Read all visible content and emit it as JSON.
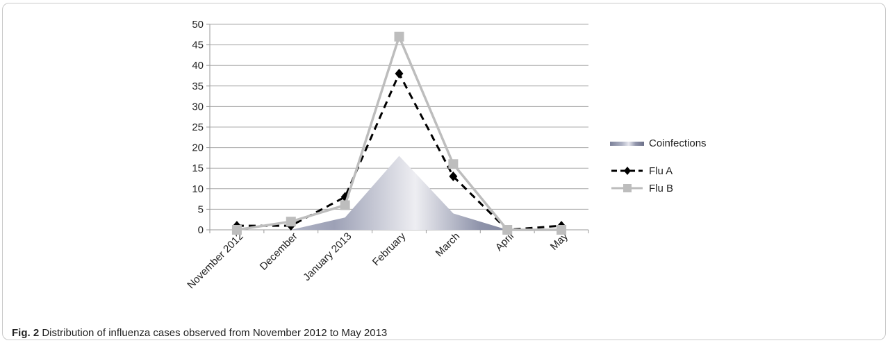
{
  "caption": {
    "label": "Fig. 2",
    "text": "Distribution of influenza cases observed from November 2012 to May 2013"
  },
  "chart_data": {
    "type": "line",
    "categories": [
      "November 2012",
      "December",
      "January 2013",
      "February",
      "March",
      "April",
      "May"
    ],
    "ylim": [
      0,
      50
    ],
    "yticks": [
      0,
      5,
      10,
      15,
      20,
      25,
      30,
      35,
      40,
      45,
      50
    ],
    "grid": true,
    "legend_position": "right",
    "series": [
      {
        "name": "Coinfections",
        "type": "area",
        "values": [
          0,
          0,
          3,
          18,
          4,
          0,
          0
        ],
        "color": "#8a8fa6"
      },
      {
        "name": "Flu A",
        "type": "line",
        "style": "dashed",
        "marker": "diamond",
        "values": [
          1,
          1,
          8,
          38,
          13,
          0,
          1
        ],
        "color": "#000000"
      },
      {
        "name": "Flu B",
        "type": "line",
        "style": "solid",
        "marker": "square",
        "values": [
          0,
          2,
          6,
          47,
          16,
          0,
          0
        ],
        "color": "#bdbdbd"
      }
    ]
  }
}
